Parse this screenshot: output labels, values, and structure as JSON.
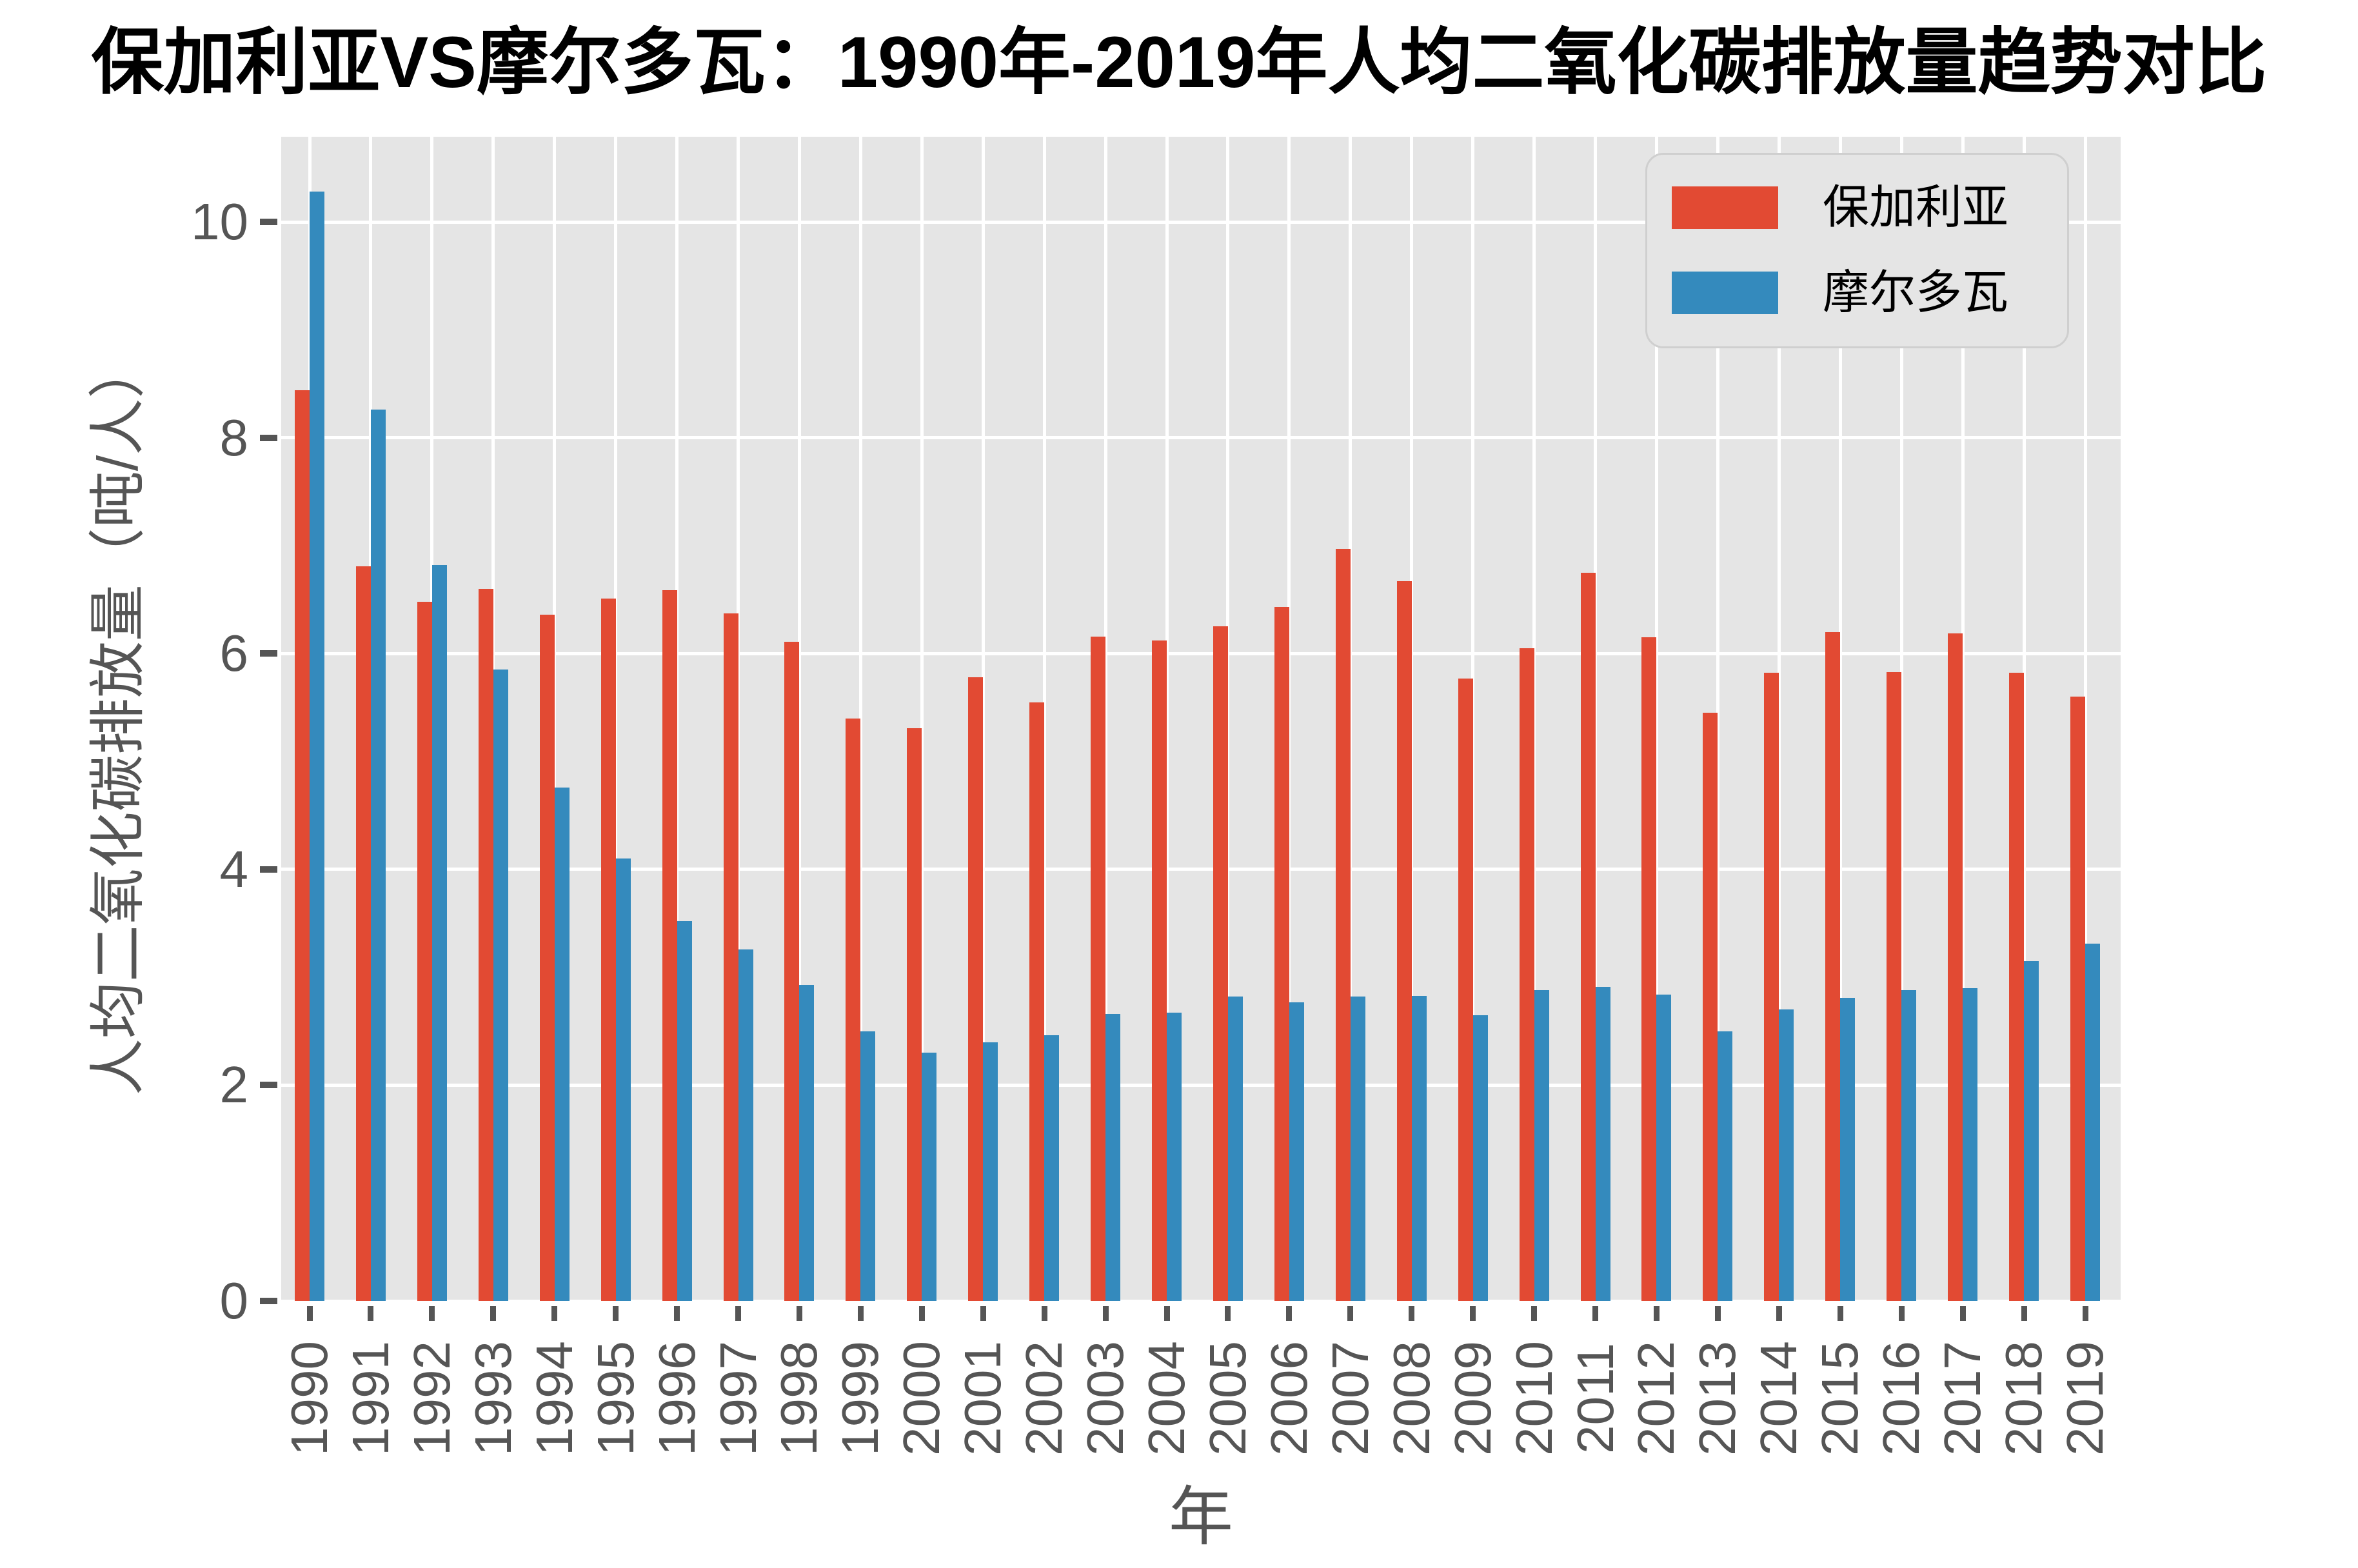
{
  "title": "保加利亚VS摩尔多瓦：1990年-2019年人均二氧化碳排放量趋势对比",
  "legend": {
    "entries": [
      {
        "label": "保加利亚",
        "color": "#E24A33"
      },
      {
        "label": "摩尔多瓦",
        "color": "#348ABD"
      }
    ]
  },
  "chart_data": {
    "type": "bar",
    "title": "保加利亚VS摩尔多瓦：1990年-2019年人均二氧化碳排放量趋势对比",
    "xlabel": "年",
    "ylabel": "人均二氧化碳排放量（吨/人）",
    "categories": [
      "1990",
      "1991",
      "1992",
      "1993",
      "1994",
      "1995",
      "1996",
      "1997",
      "1998",
      "1999",
      "2000",
      "2001",
      "2002",
      "2003",
      "2004",
      "2005",
      "2006",
      "2007",
      "2008",
      "2009",
      "2010",
      "2011",
      "2012",
      "2013",
      "2014",
      "2015",
      "2016",
      "2017",
      "2018",
      "2019"
    ],
    "series": [
      {
        "name": "保加利亚",
        "slug": "bulgaria",
        "color": "#E24A33",
        "values": [
          8.44,
          6.81,
          6.48,
          6.6,
          6.36,
          6.51,
          6.59,
          6.37,
          6.11,
          5.4,
          5.31,
          5.78,
          5.55,
          6.16,
          6.12,
          6.25,
          6.43,
          6.97,
          6.67,
          5.77,
          6.05,
          6.75,
          6.15,
          5.45,
          5.82,
          6.2,
          5.83,
          6.19,
          5.82,
          5.6
        ]
      },
      {
        "name": "摩尔多瓦",
        "slug": "moldova",
        "color": "#348ABD",
        "values": [
          10.28,
          8.26,
          6.82,
          5.85,
          4.76,
          4.1,
          3.52,
          3.26,
          2.93,
          2.5,
          2.3,
          2.4,
          2.46,
          2.66,
          2.67,
          2.82,
          2.77,
          2.82,
          2.83,
          2.65,
          2.88,
          2.91,
          2.84,
          2.5,
          2.7,
          2.81,
          2.88,
          2.9,
          3.15,
          3.31
        ]
      }
    ],
    "ylim": [
      0,
      10.79
    ],
    "yticks": [
      0,
      2,
      4,
      6,
      8,
      10
    ],
    "grid": true,
    "legend_position": "upper right",
    "plot_bg": "#E5E5E5",
    "grid_color": "#FFFFFF",
    "tick_color": "#555555"
  }
}
